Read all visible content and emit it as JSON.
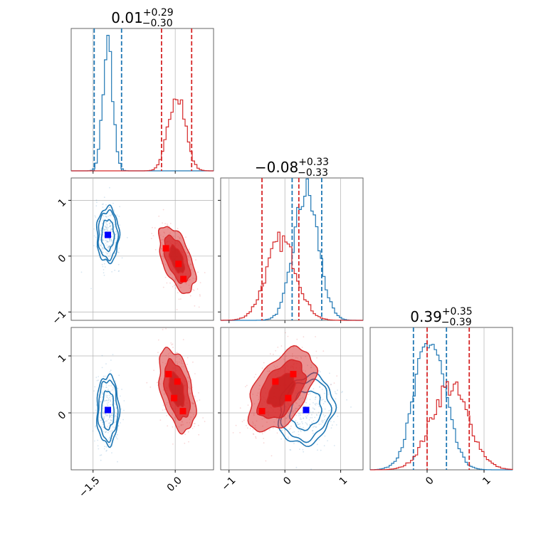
{
  "colors": {
    "blue": "#1f77b4",
    "red": "#d62728",
    "blue_marker": "#0000ff",
    "red_marker": "#ff0000"
  },
  "params": [
    {
      "title": {
        "main": "0.01",
        "sup": "+0.29",
        "sub": "−0.30"
      },
      "range": [
        -1.9,
        0.7
      ],
      "ticks": [
        -1.5,
        0.0
      ],
      "tick_labels": [
        "−1.5",
        "0.0"
      ]
    },
    {
      "title": {
        "main": "−0.08",
        "sup": "+0.33",
        "sub": "−0.33"
      },
      "range": [
        -1.15,
        1.4
      ],
      "ticks": [
        -1,
        0,
        1
      ],
      "tick_labels": [
        "−1",
        "0",
        "1"
      ]
    },
    {
      "title": {
        "main": "0.39",
        "sup": "+0.35",
        "sub": "−0.39"
      },
      "range": [
        -1.0,
        1.5
      ],
      "ticks": [
        0,
        1
      ],
      "tick_labels": [
        "0",
        "1"
      ]
    }
  ],
  "chart_data": {
    "type": "corner",
    "series": [
      {
        "color_key": "blue",
        "means": [
          -1.23,
          0.38,
          0.05
        ],
        "sds": [
          0.09,
          0.22,
          0.27
        ],
        "corr": [
          [
            1,
            0,
            0
          ],
          [
            0,
            1,
            0.15
          ],
          [
            0,
            0.15,
            1
          ]
        ],
        "markers": [
          {
            "x": -1.23,
            "y": 0.38,
            "panel": "1-0"
          },
          {
            "x": -1.23,
            "y": 0.05,
            "panel": "2-0"
          },
          {
            "x": 0.38,
            "y": 0.05,
            "panel": "2-1"
          }
        ],
        "quantile_lines": [
          [
            -1.48,
            -0.98
          ],
          [
            0.13,
            0.66
          ],
          [
            -0.24,
            0.34
          ]
        ]
      },
      {
        "color_key": "red",
        "means": [
          0.03,
          -0.06,
          0.4
        ],
        "sds": [
          0.15,
          0.27,
          0.33
        ],
        "corr": [
          [
            1,
            -0.55,
            -0.45
          ],
          [
            -0.55,
            1,
            0.5
          ],
          [
            -0.45,
            0.5,
            1
          ]
        ],
        "markers": [
          {
            "x": -0.17,
            "y": 0.14,
            "panel": "1-0"
          },
          {
            "x": 0.06,
            "y": -0.14,
            "panel": "1-0"
          },
          {
            "x": 0.15,
            "y": -0.41,
            "panel": "1-0"
          },
          {
            "x": -0.12,
            "y": 0.68,
            "panel": "2-0"
          },
          {
            "x": 0.04,
            "y": 0.55,
            "panel": "2-0"
          },
          {
            "x": -0.02,
            "y": 0.26,
            "panel": "2-0"
          },
          {
            "x": 0.14,
            "y": 0.03,
            "panel": "2-0"
          },
          {
            "x": 0.15,
            "y": 0.68,
            "panel": "2-1"
          },
          {
            "x": -0.17,
            "y": 0.55,
            "panel": "2-1"
          },
          {
            "x": 0.06,
            "y": 0.26,
            "panel": "2-1"
          },
          {
            "x": -0.41,
            "y": 0.03,
            "panel": "2-1"
          }
        ],
        "quantile_lines": [
          [
            -0.25,
            0.3
          ],
          [
            -0.41,
            0.25
          ],
          [
            0.0,
            0.74
          ]
        ]
      }
    ],
    "diagonal_peaks": [
      {
        "blue": 1.0,
        "red": 0.63
      },
      {
        "blue": 1.0,
        "red": 0.62
      },
      {
        "blue": 1.0,
        "red": 0.65
      }
    ]
  }
}
